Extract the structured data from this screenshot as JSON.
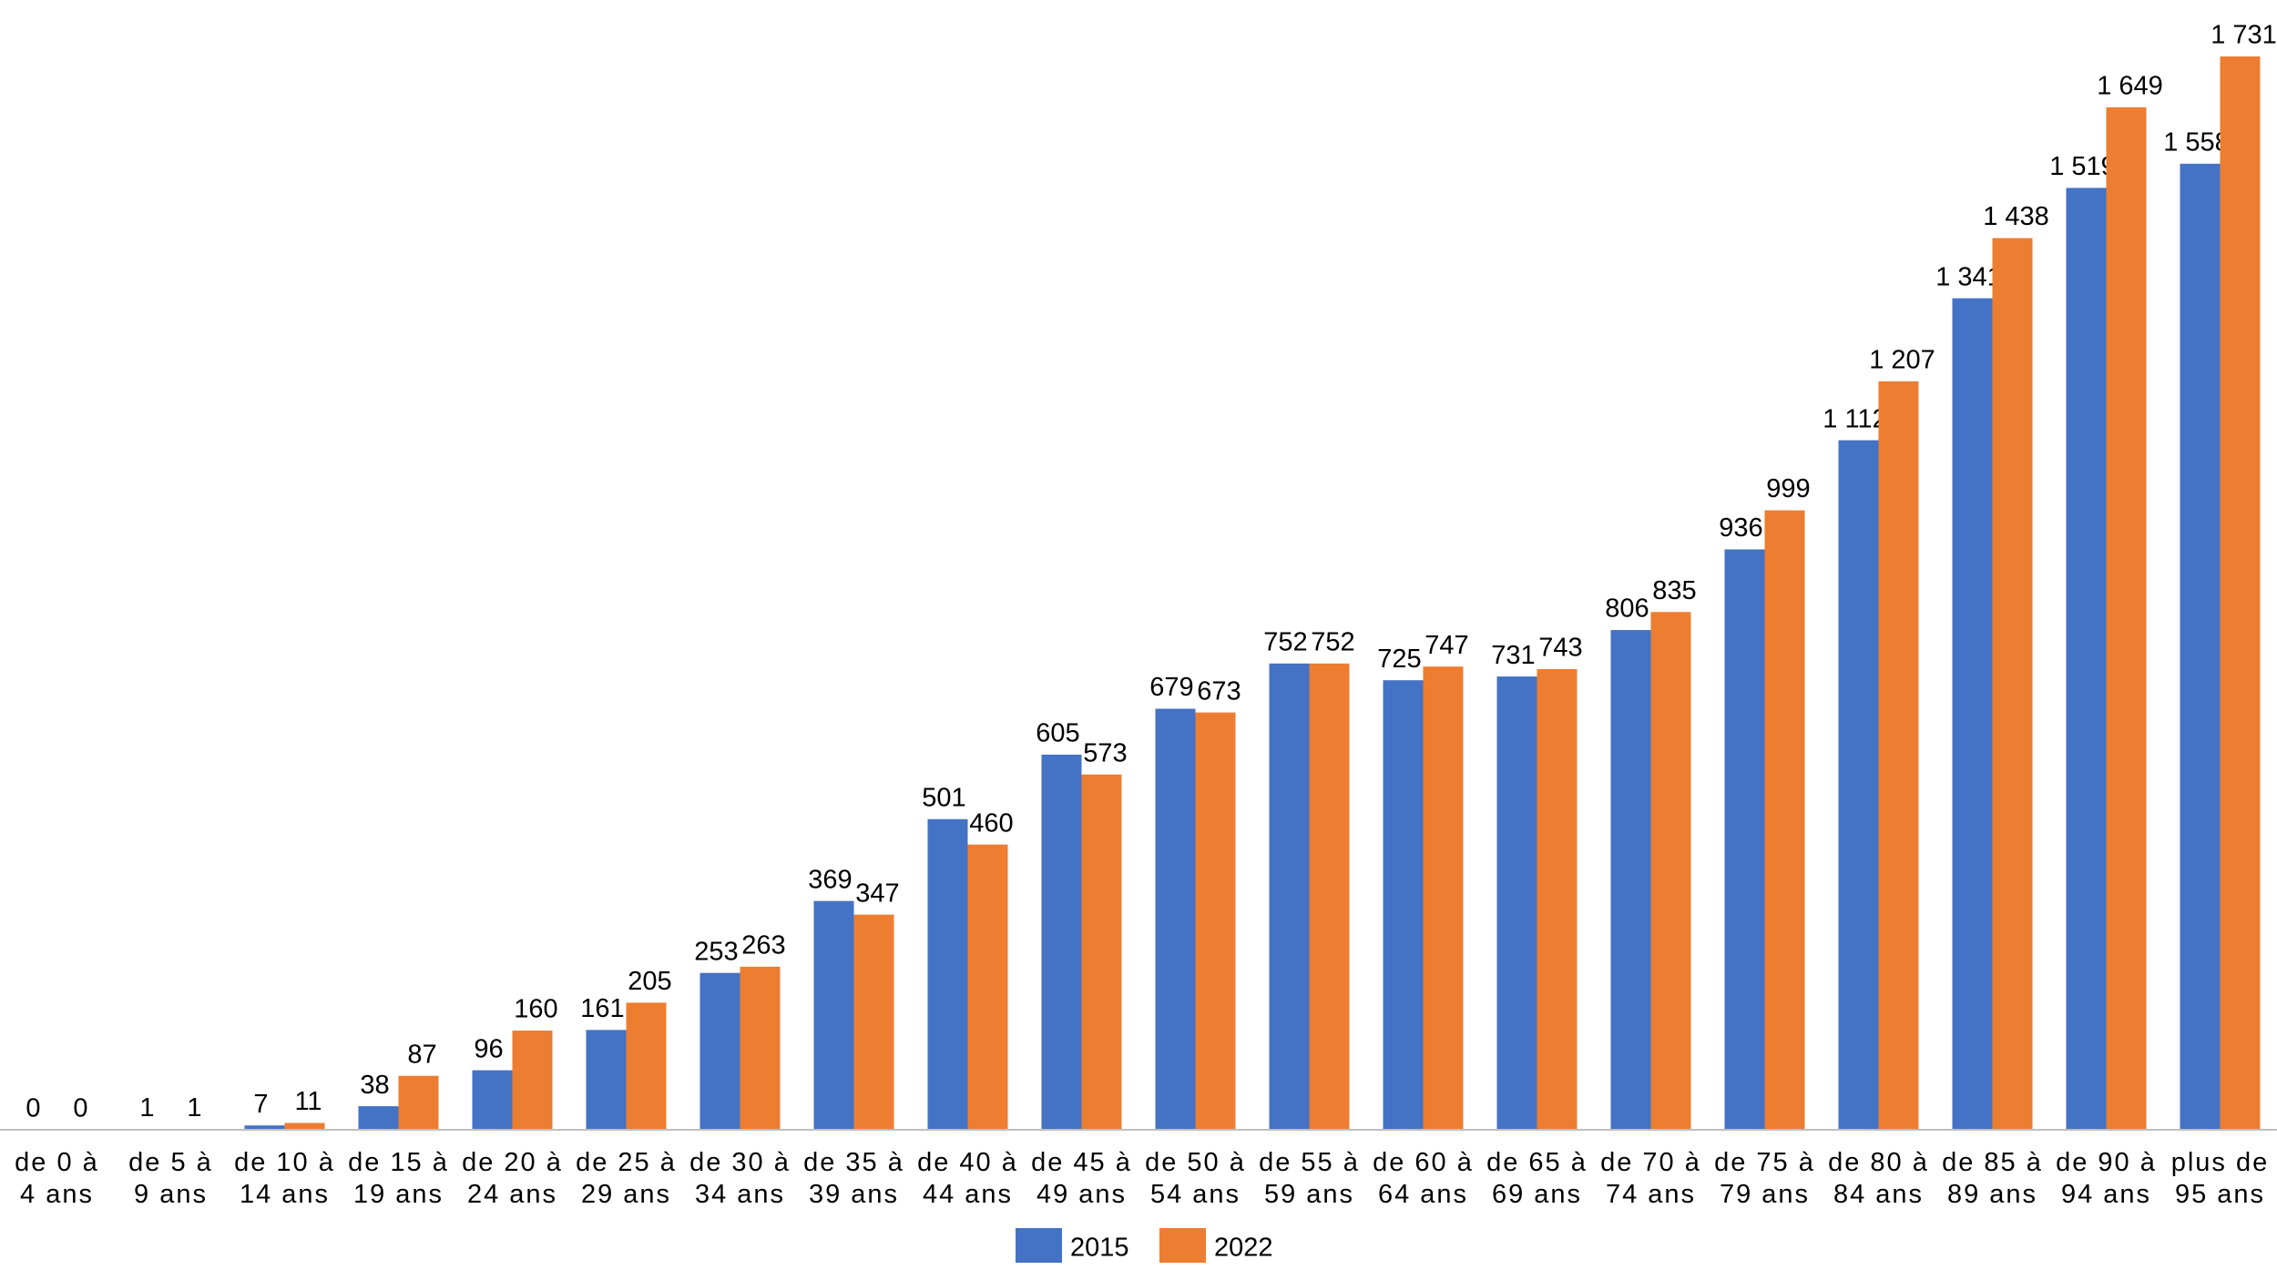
{
  "chart_data": {
    "type": "bar",
    "categories": [
      "de 0 à 4 ans",
      "de 5 à 9 ans",
      "de 10 à 14 ans",
      "de 15 à 19 ans",
      "de 20 à 24 ans",
      "de 25 à 29 ans",
      "de 30 à 34 ans",
      "de 35 à 39 ans",
      "de 40 à 44 ans",
      "de 45 à 49 ans",
      "de 50 à 54 ans",
      "de 55 à 59 ans",
      "de 60 à 64 ans",
      "de 65 à 69 ans",
      "de 70 à 74 ans",
      "de 75 à 79 ans",
      "de 80 à 84 ans",
      "de 85 à 89 ans",
      "de 90 à 94 ans",
      "plus de 95 ans"
    ],
    "series": [
      {
        "name": "2015",
        "color": "#4472c4",
        "values": [
          0,
          1,
          7,
          38,
          96,
          161,
          253,
          369,
          501,
          605,
          679,
          752,
          725,
          731,
          806,
          936,
          1112,
          1341,
          1519,
          1558
        ],
        "value_labels": [
          "0",
          "1",
          "7",
          "38",
          "96",
          "161",
          "253",
          "369",
          "501",
          "605",
          "679",
          "752",
          "725",
          "731",
          "806",
          "936",
          "1 112",
          "1 341",
          "1 519",
          "1 558"
        ]
      },
      {
        "name": "2022",
        "color": "#ed7d31",
        "values": [
          0,
          1,
          11,
          87,
          160,
          205,
          263,
          347,
          460,
          573,
          673,
          752,
          747,
          743,
          835,
          999,
          1207,
          1438,
          1649,
          1731
        ],
        "value_labels": [
          "0",
          "1",
          "11",
          "87",
          "160",
          "205",
          "263",
          "347",
          "460",
          "573",
          "673",
          "752",
          "747",
          "743",
          "835",
          "999",
          "1 207",
          "1 438",
          "1 649",
          "1 731"
        ]
      }
    ],
    "legend": "bottom"
  }
}
